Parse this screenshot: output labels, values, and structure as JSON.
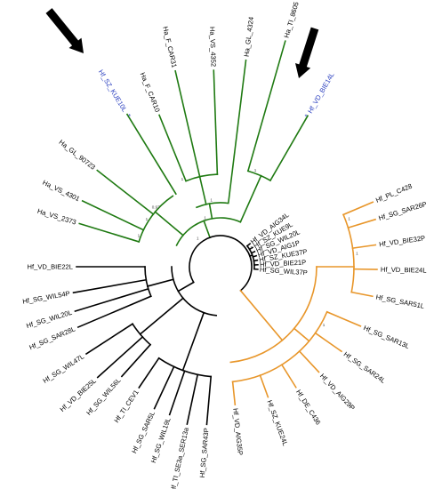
{
  "colors": {
    "black_clade": "#000000",
    "green_clade": "#1f7a12",
    "orange_clade": "#e8962a",
    "highlight_label": "#2a3fbf",
    "arrow": "#000000",
    "bootstrap_text": "#444444"
  },
  "highlight_markers": [
    "*",
    "*"
  ],
  "green_clade": {
    "labels": [
      "Ha_VS_2373",
      "Ha_VS_4301",
      "Ha_GL_90723",
      "Hf_SZ_KUE10L",
      "Ha_F_CAR10",
      "Ha_F_CAR31",
      "Ha_VS_4352",
      "Ha_GL_4324",
      "Ha_TI_8605",
      "Hf_VD_BIE14L"
    ],
    "bootstrap": [
      "1",
      "1",
      "0.97",
      "1",
      "1",
      "1",
      "1"
    ]
  },
  "black_clade": {
    "tight_labels": [
      "Hf_VD_AIG34L",
      "Hf_SZ_KUE9L",
      "Hf_SG_WIL20L",
      "Hf_VD_AIG1P",
      "Hf_SZ_KUE37P",
      "Hf_VD_BIE21P",
      "Hf_SG_WIL37P"
    ],
    "left_labels": [
      "Hf_VD_BIE22L",
      "Hf_SG_WIL54P",
      "Hf_SG_WIL20L",
      "Hf_SG_SAR28L",
      "Hf_SG_WIL47L",
      "Hf_VD_BIE25L",
      "Hf_SG_WIL56L",
      "Hf_TI_CEV1",
      "Hf_SG_SAR5L",
      "Hf_SG_WIL19L",
      "Hf_TI_SE3a_SER13a",
      "Hf_SG_SAR43P"
    ],
    "bootstrap": [
      "1",
      "1"
    ]
  },
  "orange_clade": {
    "labels": [
      "Hf_PL_C428",
      "Hf_SG_SAR26P",
      "Hf_VD_BIE32P",
      "Hf_VD_BIE24L",
      "Hf_SG_SAR51L",
      "Hf_SG_SAR13L",
      "Hf_SG_SAR24L",
      "Hf_VD_AIG29P",
      "Hf_DE_C436",
      "Hf_SZ_KUE24L",
      "Hf_VD_AIG35P"
    ],
    "bootstrap": [
      "1",
      "1",
      "1"
    ]
  }
}
